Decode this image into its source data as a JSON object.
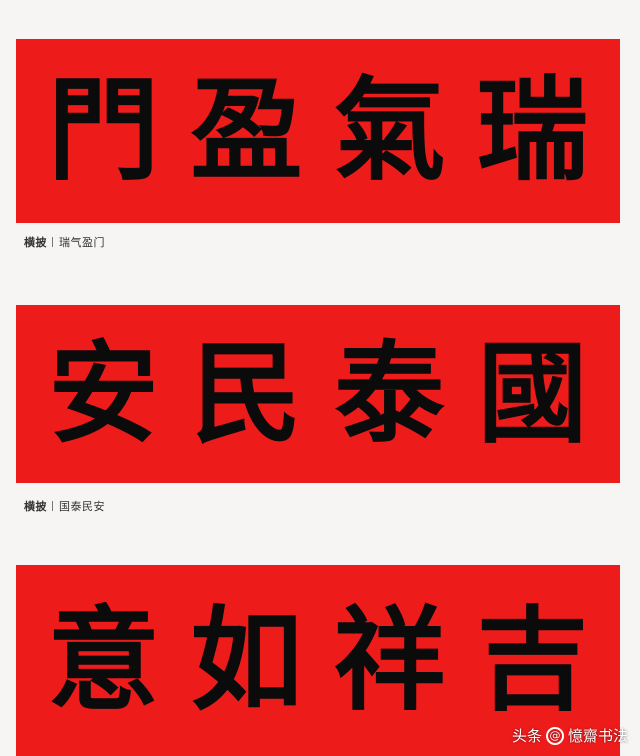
{
  "banners": [
    {
      "characters": [
        "門",
        "盈",
        "氣",
        "瑞"
      ],
      "caption": {
        "label": "横披",
        "text": "瑞气盈门"
      }
    },
    {
      "characters": [
        "安",
        "民",
        "泰",
        "國"
      ],
      "caption": {
        "label": "横披",
        "text": "国泰民安"
      }
    },
    {
      "characters": [
        "意",
        "如",
        "祥",
        "吉"
      ]
    }
  ],
  "watermark": {
    "platform": "头条",
    "icon": "at-icon",
    "author": "憶齋书法"
  },
  "colors": {
    "banner_red": "#ee1b1b",
    "ink": "#0b0b0b",
    "background": "#f7f5f3"
  }
}
